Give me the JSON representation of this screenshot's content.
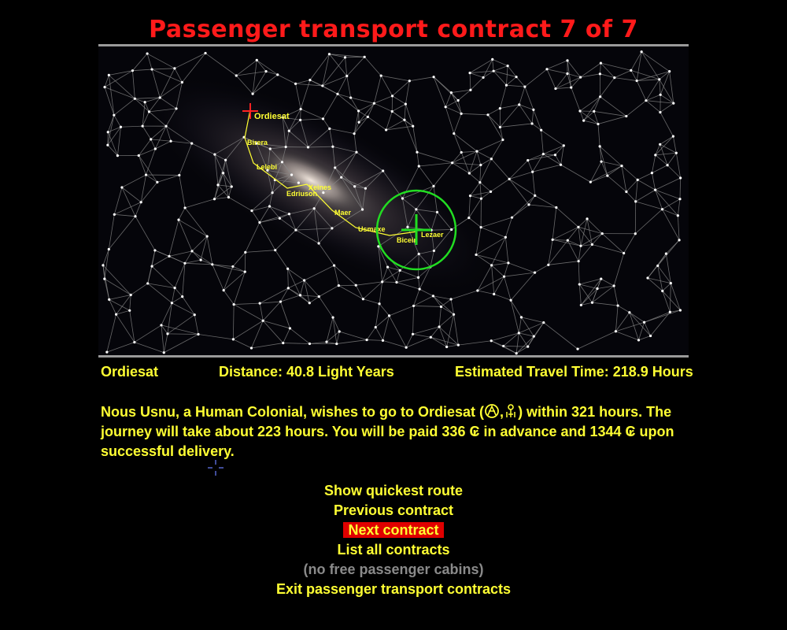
{
  "header": {
    "title": "Passenger transport contract 7 of 7"
  },
  "map": {
    "destination": "Ordiesat",
    "current": "Lezaer",
    "route_stars": [
      "Ordiesat",
      "Birera",
      "Lelebi",
      "Xeines",
      "Edriuson",
      "Maer",
      "Usmaxe",
      "Bicein",
      "Lezaer"
    ],
    "colors": {
      "route": "#ffff33",
      "range_circle": "#22dd22",
      "target_marker": "#ff2222",
      "links": "#8a8a8a",
      "stars": "#ffffff"
    }
  },
  "info": {
    "destination": "Ordiesat",
    "distance": "Distance: 40.8 Light Years",
    "travel_time": "Estimated Travel Time: 218.9 Hours"
  },
  "description": {
    "part1": "Nous Usnu, a Human Colonial, wishes to go to Ordiesat (",
    "sep": ",",
    "part2": ") within 321 hours. The journey will take about 223 hours. You will be paid 336 ₢ in advance and 1344 ₢ upon successful delivery.",
    "icons": [
      "government-icon",
      "tech-icon"
    ]
  },
  "menu": {
    "items": [
      {
        "label": "Show quickest route"
      },
      {
        "label": "Previous contract"
      },
      {
        "label": "Next contract"
      },
      {
        "label": "List all contracts"
      },
      {
        "label": "(no free passenger cabins)"
      },
      {
        "label": "Exit passenger transport contracts"
      }
    ]
  }
}
